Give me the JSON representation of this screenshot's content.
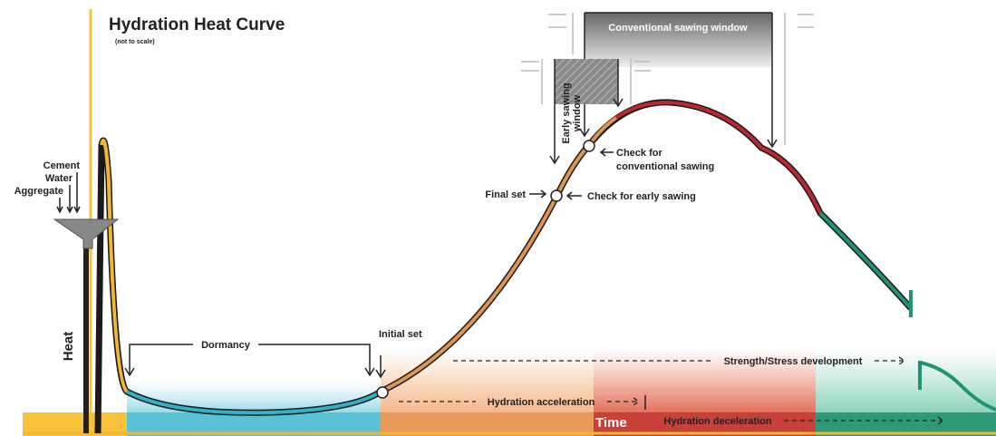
{
  "header": {
    "title": "Hydration Heat Curve",
    "subtitle": "(not to scale)"
  },
  "inputs": [
    "Cement",
    "Water",
    "Aggregate"
  ],
  "axes": {
    "y": "Heat",
    "x": "Time"
  },
  "phases": {
    "dormancy": "Dormancy",
    "acceleration": "Hydration acceleration",
    "deceleration": "Hydration deceleration",
    "strength": "Strength/Stress development"
  },
  "events": {
    "initial_set": "Initial set",
    "final_set": "Final set",
    "check_early": "Check for early sawing",
    "check_conventional": [
      "Check for",
      "conventional sawing"
    ]
  },
  "windows": {
    "early": [
      "Early sawing",
      "window"
    ],
    "conventional": "Conventional sawing window"
  }
}
